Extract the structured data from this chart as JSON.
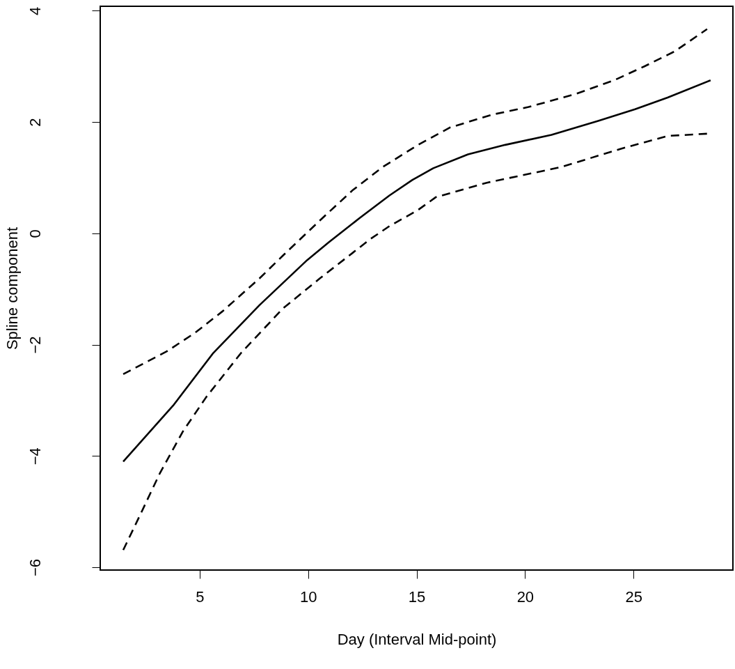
{
  "chart_data": {
    "type": "line",
    "xlabel": "Day (Interval Mid-point)",
    "ylabel": "Spline component",
    "xlim": [
      0.42,
      29.58
    ],
    "ylim": [
      -6.05,
      4.08
    ],
    "xticks": [
      5,
      10,
      15,
      20,
      25
    ],
    "yticks": [
      -6,
      -4,
      -2,
      0,
      2,
      4
    ],
    "grid": false,
    "marker": "none",
    "series": [
      {
        "color": "#000000",
        "line_style": "solid",
        "x": [
          1.48,
          3.81,
          5.63,
          7.76,
          9.96,
          10.96,
          12.36,
          13.75,
          14.81,
          15.77,
          17.37,
          19.09,
          21.22,
          23.37,
          25.07,
          26.57,
          28.55
        ],
        "values": [
          -4.1,
          -3.08,
          -2.15,
          -1.29,
          -0.48,
          -0.16,
          0.27,
          0.68,
          0.96,
          1.17,
          1.42,
          1.59,
          1.77,
          2.02,
          2.23,
          2.44,
          2.75
        ]
      },
      {
        "color": "#000000",
        "line_style": "dashed",
        "x": [
          1.48,
          3.49,
          4.78,
          6.06,
          7.76,
          8.84,
          10.54,
          12.04,
          13.43,
          15.03,
          16.53,
          18.45,
          20.16,
          22.3,
          24.1,
          25.5,
          26.9,
          28.39
        ],
        "values": [
          -2.53,
          -2.12,
          -1.79,
          -1.4,
          -0.81,
          -0.4,
          0.23,
          0.77,
          1.19,
          1.58,
          1.9,
          2.13,
          2.27,
          2.5,
          2.75,
          3.0,
          3.27,
          3.67
        ]
      },
      {
        "color": "#000000",
        "line_style": "dashed",
        "x": [
          1.48,
          2.21,
          3.17,
          4.23,
          5.31,
          6.91,
          8.84,
          10.54,
          12.88,
          13.75,
          15.03,
          15.89,
          18.24,
          21.66,
          24.42,
          26.57,
          28.39
        ],
        "values": [
          -5.69,
          -5.1,
          -4.31,
          -3.56,
          -2.94,
          -2.15,
          -1.35,
          -0.81,
          -0.1,
          0.13,
          0.41,
          0.65,
          0.91,
          1.19,
          1.52,
          1.75,
          1.79
        ]
      }
    ]
  }
}
